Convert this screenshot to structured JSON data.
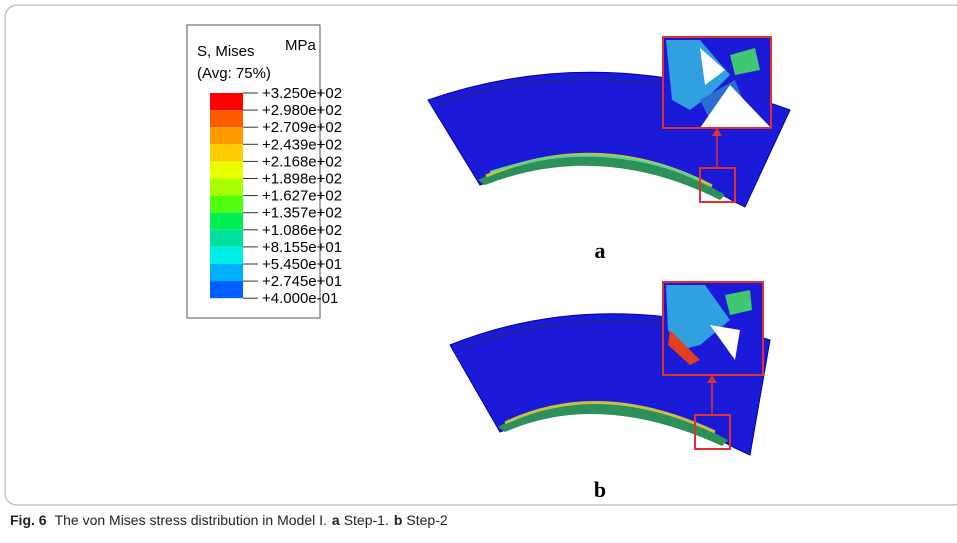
{
  "legend": {
    "title": "S, Mises",
    "unit": "MPa",
    "averaging": "(Avg: 75%)",
    "labels": [
      "+3.250e+02",
      "+2.980e+02",
      "+2.709e+02",
      "+2.439e+02",
      "+2.168e+02",
      "+1.898e+02",
      "+1.627e+02",
      "+1.357e+02",
      "+1.086e+02",
      "+8.155e+01",
      "+5.450e+01",
      "+2.745e+01",
      "+4.000e-01"
    ]
  },
  "panels": [
    {
      "label": "a"
    },
    {
      "label": "b"
    }
  ],
  "caption": {
    "number": "Fig. 6",
    "text": "The von Mises stress distribution in Model I.",
    "part_a": "a",
    "part_a_text": "Step-1.",
    "part_b": "b",
    "part_b_text": "Step-2"
  }
}
